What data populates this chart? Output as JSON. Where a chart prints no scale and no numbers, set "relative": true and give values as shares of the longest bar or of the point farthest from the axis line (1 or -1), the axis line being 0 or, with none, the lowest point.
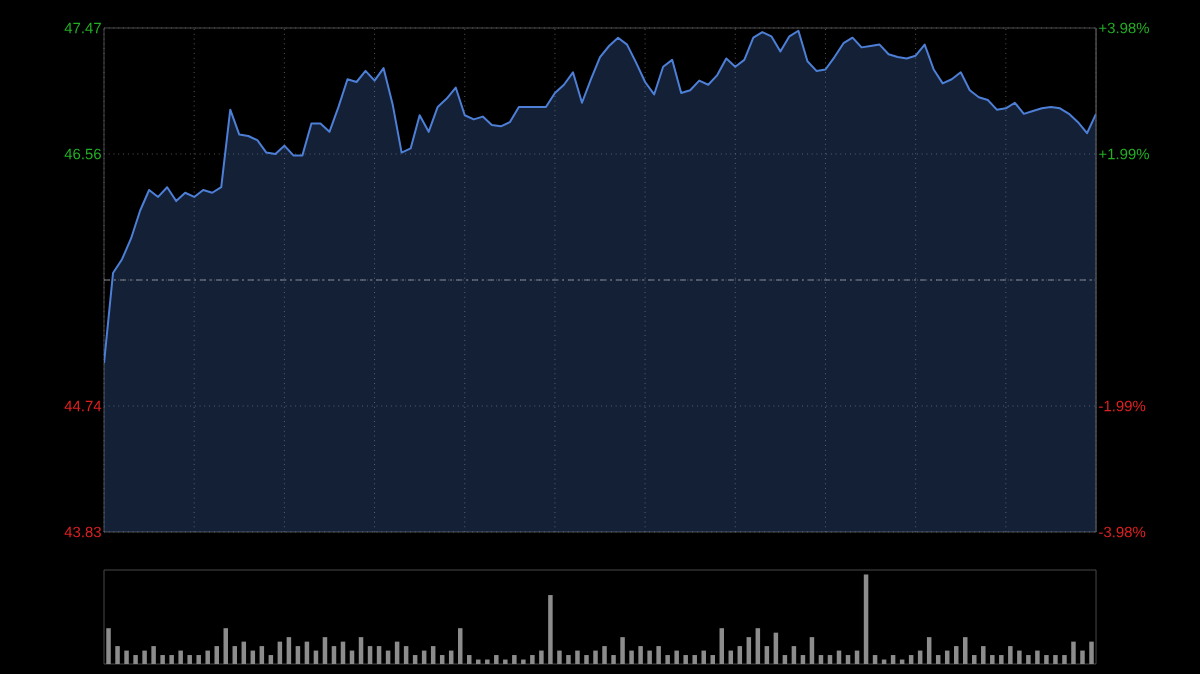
{
  "chart_data": [
    {
      "type": "area",
      "categories": [
        null,
        null,
        null,
        null,
        null,
        null,
        null,
        null,
        null,
        null,
        null,
        null,
        null,
        null,
        null,
        null,
        null,
        null,
        null,
        null,
        null,
        null,
        null,
        null,
        null,
        null,
        null,
        null,
        null,
        null,
        null,
        null,
        null,
        null,
        null,
        null,
        null,
        null,
        null,
        null,
        null,
        null,
        null,
        null,
        null,
        null,
        null,
        null,
        null,
        null,
        null,
        null,
        null,
        null,
        null,
        null,
        null,
        null,
        null,
        null,
        null,
        null,
        null,
        null,
        null,
        null,
        null,
        null,
        null,
        null,
        null,
        null,
        null,
        null,
        null,
        null,
        null,
        null,
        null,
        null,
        null,
        null,
        null,
        null,
        null,
        null,
        null,
        null,
        null,
        null,
        null,
        null,
        null,
        null,
        null,
        null,
        null,
        null,
        null,
        null,
        null,
        null,
        null,
        null,
        null,
        null,
        null,
        null,
        null,
        null,
        null
      ],
      "ylim": [
        43.83,
        47.47
      ],
      "yticks": [
        43.83,
        44.74,
        {
          "value": 45.65,
          "label": null
        },
        46.56,
        47.47
      ],
      "y2lim": [
        -3.98,
        3.98
      ],
      "y2ticks": [
        {
          "value": -3.98,
          "label": "-3.98%"
        },
        {
          "value": -1.99,
          "label": "-1.99%"
        },
        {
          "value": 1.99,
          "label": "+1.99%"
        },
        {
          "value": 3.98,
          "label": "+3.98%"
        }
      ],
      "grid": true,
      "ref_lines": [
        {
          "axis": "y",
          "value": 45.65,
          "color": "#8a8a8a",
          "line_style": "dashed"
        }
      ],
      "series": [
        {
          "color": "#4d7fd6",
          "values": [
            45.05,
            45.7,
            45.8,
            45.95,
            46.15,
            46.3,
            46.25,
            46.32,
            46.22,
            46.28,
            46.25,
            46.3,
            46.28,
            46.32,
            46.88,
            46.7,
            46.69,
            46.66,
            46.57,
            46.56,
            46.62,
            46.55,
            46.55,
            46.78,
            46.78,
            46.72,
            46.9,
            47.1,
            47.08,
            47.16,
            47.09,
            47.18,
            46.92,
            46.57,
            46.6,
            46.84,
            46.72,
            46.9,
            46.96,
            47.04,
            46.84,
            46.81,
            46.83,
            46.77,
            46.76,
            46.79,
            46.9,
            46.9,
            46.9,
            46.9,
            47.0,
            47.06,
            47.15,
            46.93,
            47.1,
            47.26,
            47.34,
            47.4,
            47.35,
            47.22,
            47.08,
            46.99,
            47.19,
            47.24,
            47.0,
            47.02,
            47.09,
            47.06,
            47.13,
            47.25,
            47.19,
            47.24,
            47.4,
            47.44,
            47.41,
            47.3,
            47.41,
            47.45,
            47.23,
            47.16,
            47.17,
            47.26,
            47.36,
            47.4,
            47.33,
            47.34,
            47.35,
            47.28,
            47.26,
            47.25,
            47.27,
            47.35,
            47.17,
            47.07,
            47.1,
            47.15,
            47.02,
            46.97,
            46.95,
            46.88,
            46.89,
            46.93,
            46.85,
            46.87,
            46.89,
            46.9,
            46.89,
            46.85,
            46.79,
            46.71,
            46.85
          ]
        }
      ]
    },
    {
      "type": "bar",
      "relative": true,
      "color": "#8c8c8c",
      "categories": [
        null,
        null,
        null,
        null,
        null,
        null,
        null,
        null,
        null,
        null,
        null,
        null,
        null,
        null,
        null,
        null,
        null,
        null,
        null,
        null,
        null,
        null,
        null,
        null,
        null,
        null,
        null,
        null,
        null,
        null,
        null,
        null,
        null,
        null,
        null,
        null,
        null,
        null,
        null,
        null,
        null,
        null,
        null,
        null,
        null,
        null,
        null,
        null,
        null,
        null,
        null,
        null,
        null,
        null,
        null,
        null,
        null,
        null,
        null,
        null,
        null,
        null,
        null,
        null,
        null,
        null,
        null,
        null,
        null,
        null,
        null,
        null,
        null,
        null,
        null,
        null,
        null,
        null,
        null,
        null,
        null,
        null,
        null,
        null,
        null,
        null,
        null,
        null,
        null,
        null,
        null,
        null,
        null,
        null,
        null,
        null,
        null,
        null,
        null,
        null,
        null,
        null,
        null,
        null,
        null,
        null,
        null,
        null,
        null,
        null
      ],
      "values": [
        0.4,
        0.2,
        0.15,
        0.1,
        0.15,
        0.2,
        0.1,
        0.1,
        0.15,
        0.1,
        0.1,
        0.15,
        0.2,
        0.4,
        0.2,
        0.25,
        0.15,
        0.2,
        0.1,
        0.25,
        0.3,
        0.2,
        0.25,
        0.15,
        0.3,
        0.2,
        0.25,
        0.15,
        0.3,
        0.2,
        0.2,
        0.15,
        0.25,
        0.2,
        0.1,
        0.15,
        0.2,
        0.1,
        0.15,
        0.4,
        0.1,
        0.05,
        0.05,
        0.1,
        0.05,
        0.1,
        0.05,
        0.1,
        0.15,
        0.77,
        0.15,
        0.1,
        0.15,
        0.1,
        0.15,
        0.2,
        0.1,
        0.3,
        0.15,
        0.2,
        0.15,
        0.2,
        0.1,
        0.15,
        0.1,
        0.1,
        0.15,
        0.1,
        0.4,
        0.15,
        0.2,
        0.3,
        0.4,
        0.2,
        0.35,
        0.1,
        0.2,
        0.1,
        0.3,
        0.1,
        0.1,
        0.15,
        0.1,
        0.15,
        1.0,
        0.1,
        0.05,
        0.1,
        0.05,
        0.1,
        0.15,
        0.3,
        0.1,
        0.15,
        0.2,
        0.3,
        0.1,
        0.2,
        0.1,
        0.1,
        0.2,
        0.15,
        0.1,
        0.15,
        0.1,
        0.1,
        0.1,
        0.25,
        0.15,
        0.25
      ]
    }
  ]
}
